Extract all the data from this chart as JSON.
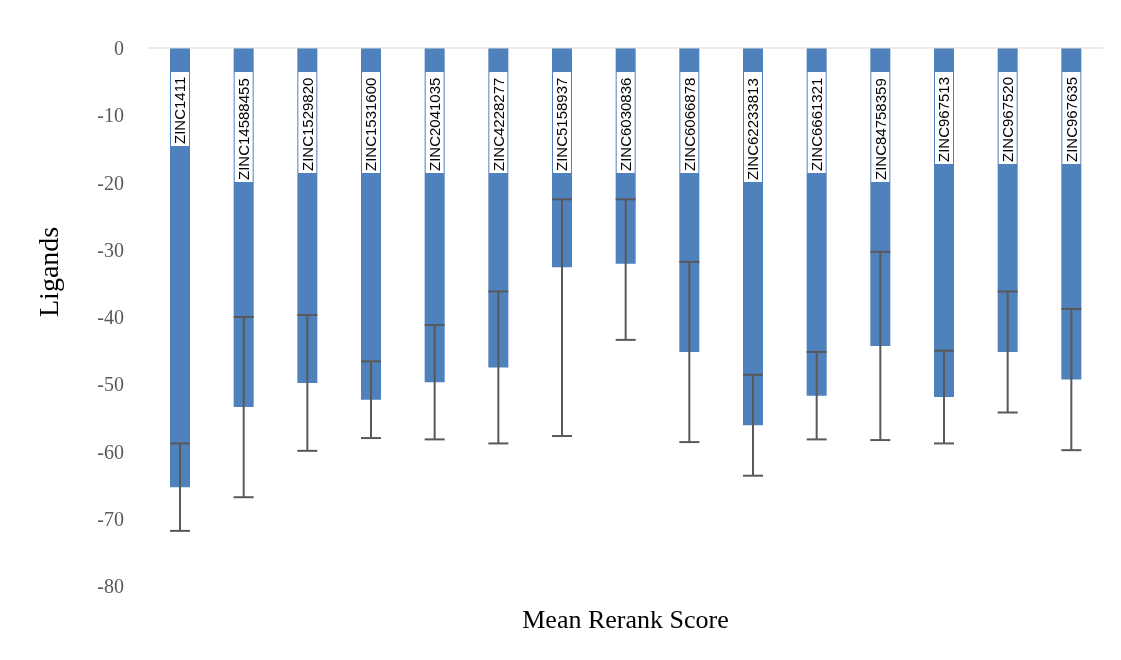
{
  "chart_data": {
    "type": "bar",
    "xlabel": "Mean Rerank Score",
    "ylabel": "Ligands",
    "categories": [
      "ZINC1411",
      "ZINC14588455",
      "ZINC1529820",
      "ZINC1531600",
      "ZINC2041035",
      "ZINC4228277",
      "ZINC5158937",
      "ZINC6030836",
      "ZINC6066878",
      "ZINC62233813",
      "ZINC6661321",
      "ZINC84758359",
      "ZINC967513",
      "ZINC967520",
      "ZINC967635"
    ],
    "values": [
      -65.3,
      -53.4,
      -49.8,
      -52.3,
      -49.7,
      -47.5,
      -32.6,
      -32.1,
      -45.2,
      -56.1,
      -51.7,
      -44.3,
      -51.9,
      -45.2,
      -49.3
    ],
    "errors": [
      6.5,
      13.4,
      10.1,
      5.7,
      8.5,
      11.3,
      [
        -57.7,
        -22.5
      ],
      [
        -43.4,
        -22.5
      ],
      13.4,
      7.5,
      6.5,
      14.0,
      6.9,
      9.0,
      10.5
    ],
    "color": "#4f81bd",
    "ylim": [
      -80,
      0
    ],
    "yticks": [
      -80,
      -70,
      -60,
      -50,
      -40,
      -30,
      -20,
      -10,
      0
    ]
  }
}
